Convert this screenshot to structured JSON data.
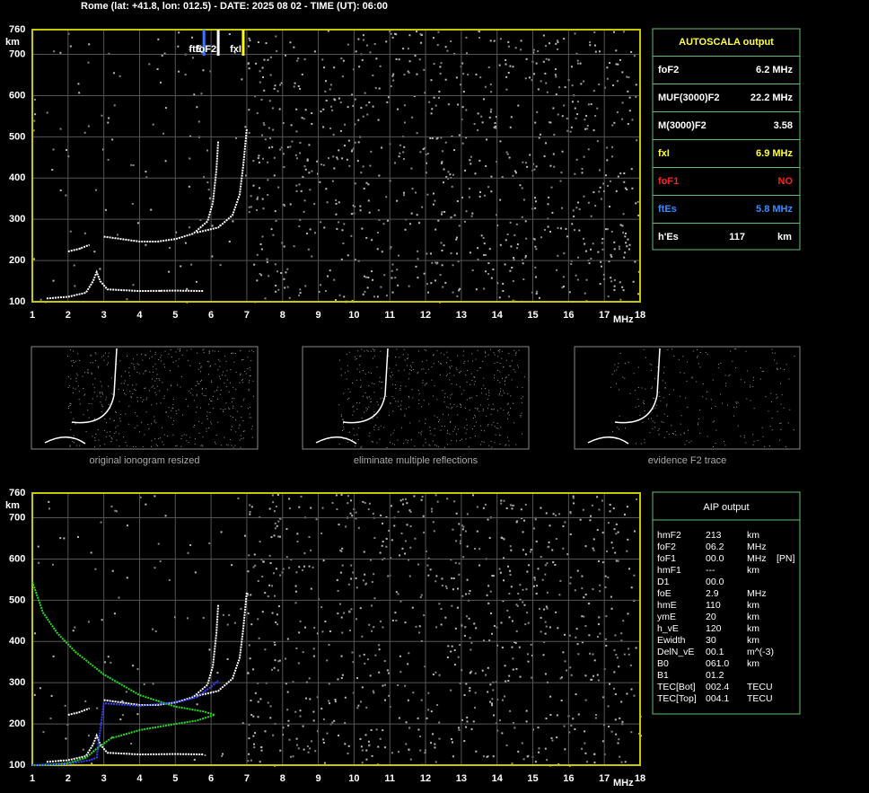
{
  "header": {
    "title": "Rome (lat: +41.8, lon: 012.5) - DATE: 2025 08 02 - TIME (UT): 06:00"
  },
  "chart_data": [
    {
      "type": "ionogram",
      "xlabel": "MHz",
      "ylabel": "km",
      "xlim": [
        1,
        18
      ],
      "ylim": [
        100,
        760
      ],
      "xticks": [
        1,
        2,
        3,
        4,
        5,
        6,
        7,
        8,
        9,
        10,
        11,
        12,
        13,
        14,
        15,
        16,
        17,
        18
      ],
      "yticks": [
        100,
        200,
        300,
        400,
        500,
        600,
        700,
        760
      ],
      "grid": true,
      "frame_color": "#c8c800",
      "markers": [
        {
          "label": "ftE",
          "value": 5.8,
          "color": "#3a7bff"
        },
        {
          "label": "foF2",
          "value": 6.2,
          "color": "#ffffff"
        },
        {
          "label": "fxI",
          "value": 6.9,
          "color": "#ffff00"
        }
      ],
      "series": [
        {
          "color": "#ffffff",
          "x": [
            1.4,
            2.0,
            2.5,
            2.7,
            2.8,
            2.9,
            3.1,
            4.0,
            5.0,
            5.8
          ],
          "values": [
            108,
            112,
            122,
            150,
            172,
            150,
            130,
            126,
            127,
            126
          ]
        },
        {
          "color": "#ffffff",
          "x": [
            2.0,
            2.3,
            2.6
          ],
          "values": [
            222,
            228,
            238
          ]
        },
        {
          "color": "#ffffff",
          "x": [
            3.0,
            3.5,
            4.0,
            4.5,
            5.0,
            5.5,
            5.9,
            6.05,
            6.15,
            6.2
          ],
          "values": [
            258,
            252,
            246,
            246,
            252,
            265,
            295,
            340,
            420,
            490
          ]
        },
        {
          "color": "#ffffff",
          "x": [
            5.6,
            6.2,
            6.6,
            6.8,
            6.9,
            7.0
          ],
          "values": [
            268,
            280,
            310,
            360,
            430,
            520
          ]
        }
      ]
    },
    {
      "type": "ionogram",
      "xlabel": "MHz",
      "ylabel": "km",
      "xlim": [
        1,
        18
      ],
      "ylim": [
        100,
        760
      ],
      "xticks": [
        1,
        2,
        3,
        4,
        5,
        6,
        7,
        8,
        9,
        10,
        11,
        12,
        13,
        14,
        15,
        16,
        17,
        18
      ],
      "yticks": [
        100,
        200,
        300,
        400,
        500,
        600,
        700,
        760
      ],
      "grid": true,
      "frame_color": "#c8c800",
      "series": [
        {
          "color": "#ffffff",
          "x": [
            1.4,
            2.0,
            2.5,
            2.7,
            2.8,
            2.9,
            3.1,
            4.0,
            5.0,
            5.8
          ],
          "values": [
            108,
            112,
            122,
            150,
            172,
            150,
            130,
            126,
            127,
            126
          ]
        },
        {
          "color": "#ffffff",
          "x": [
            2.0,
            2.3,
            2.6
          ],
          "values": [
            222,
            228,
            238
          ]
        },
        {
          "color": "#ffffff",
          "x": [
            3.0,
            3.5,
            4.0,
            4.5,
            5.0,
            5.5,
            5.9,
            6.05,
            6.15,
            6.2
          ],
          "values": [
            258,
            252,
            246,
            246,
            252,
            265,
            295,
            340,
            420,
            490
          ]
        },
        {
          "color": "#ffffff",
          "x": [
            5.6,
            6.2,
            6.6,
            6.8,
            6.9,
            7.0
          ],
          "values": [
            268,
            280,
            310,
            360,
            430,
            520
          ]
        },
        {
          "color": "#22dd22",
          "x": [
            1.0,
            1.3,
            1.7,
            2.2,
            3.0,
            4.0,
            5.0,
            5.8,
            6.1,
            5.6,
            5.0,
            4.0,
            3.2,
            2.8,
            2.5,
            2.0,
            1.5,
            1.0
          ],
          "values": [
            545,
            470,
            420,
            375,
            320,
            270,
            242,
            230,
            222,
            208,
            200,
            185,
            165,
            140,
            118,
            105,
            101,
            100
          ]
        },
        {
          "color": "#3344ff",
          "x": [
            1.0,
            2.0,
            2.6,
            2.8,
            3.0,
            4.0,
            5.0,
            5.6,
            6.0,
            6.2
          ],
          "values": [
            100,
            103,
            112,
            118,
            250,
            244,
            252,
            265,
            290,
            305
          ]
        }
      ]
    }
  ],
  "thumbnails": [
    "original ionogram resized",
    "eliminate multiple reflections",
    "evidence F2 trace"
  ],
  "autoscala": {
    "title": "AUTOSCALA output",
    "rows": [
      {
        "label": "foF2",
        "value": "6.2 MHz",
        "color": "#ffffff"
      },
      {
        "label": "MUF(3000)F2",
        "value": "22.2 MHz",
        "color": "#ffffff"
      },
      {
        "label": "M(3000)F2",
        "value": "3.58",
        "color": "#ffffff"
      },
      {
        "label": "fxI",
        "value": "6.9 MHz",
        "color": "#ffff33"
      },
      {
        "label": "foF1",
        "value": "NO",
        "color": "#ff2020"
      },
      {
        "label": "ftEs",
        "value": "5.8 MHz",
        "color": "#3a8bff"
      },
      {
        "label": "h'Es",
        "value": "117",
        "unit": "km",
        "color": "#ffffff"
      }
    ]
  },
  "aip": {
    "title": "AIP output",
    "rows": [
      [
        "hmF2",
        "213",
        "km"
      ],
      [
        "foF2",
        "06.2",
        "MHz"
      ],
      [
        "foF1",
        "00.0",
        "MHz",
        "[PN]"
      ],
      [
        "hmF1",
        "---",
        "km"
      ],
      [
        "D1",
        "00.0"
      ],
      [
        "foE",
        "2.9",
        "MHz"
      ],
      [
        "hmE",
        "110",
        "km"
      ],
      [
        "ymE",
        "20",
        "km"
      ],
      [
        "h_vE",
        "120",
        "km"
      ],
      [
        "Ewidth",
        "30",
        "km"
      ],
      [
        "DelN_vE",
        "00.1",
        "m^(-3)"
      ],
      [
        "B0",
        "061.0",
        "km"
      ],
      [
        "B1",
        "01.2"
      ],
      [
        "TEC[Bot]",
        "002.4",
        "TECU"
      ],
      [
        "TEC[Top]",
        "004.1",
        "TECU"
      ]
    ]
  }
}
